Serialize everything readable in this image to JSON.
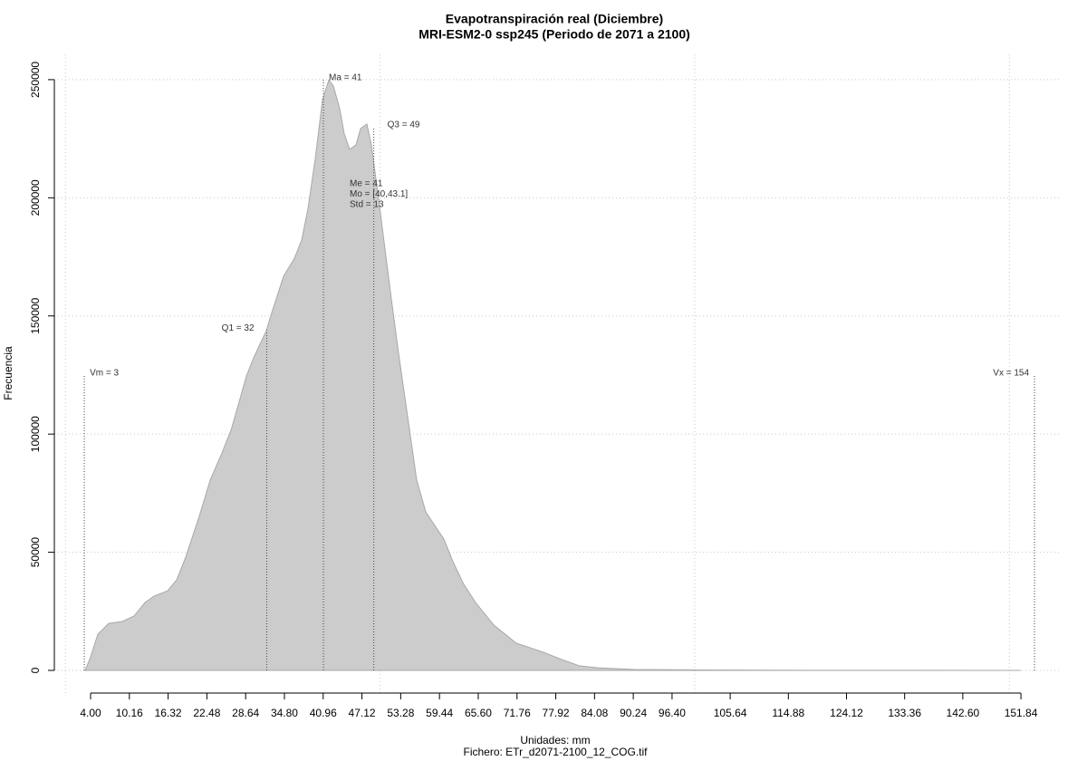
{
  "chart_data": {
    "type": "area",
    "title": "Evapotranspiración real (Diciembre)",
    "subtitle": "MRI-ESM2-0 ssp245 (Periodo de 2071 a 2100)",
    "xlabel": "Unidades: mm",
    "caption": "Fichero: ETr_d2071-2100_12_COG.tif",
    "ylabel": "Frecuencia",
    "color": "#cccccc",
    "grid": true,
    "x": [
      3.14,
      4,
      5.15,
      6.88,
      9.04,
      10.91,
      12.64,
      14.08,
      16.24,
      17.68,
      19.11,
      21.27,
      23.0,
      24.87,
      26.31,
      27.75,
      28.76,
      29.91,
      31.93,
      32.79,
      34.66,
      36.39,
      37.54,
      38.55,
      39.7,
      40.85,
      41.86,
      42.58,
      43.59,
      44.31,
      45.17,
      46.18,
      46.9,
      47.9,
      48.62,
      49.78,
      50.78,
      51.79,
      52.94,
      54.38,
      55.82,
      57.26,
      58.7,
      60.14,
      61.58,
      63.31,
      65.18,
      68.06,
      71.66,
      75.97,
      78.85,
      81.73,
      84.61,
      90.37,
      100.45,
      119.2,
      151.84
    ],
    "values": [
      0,
      5700,
      15300,
      19900,
      20700,
      23000,
      28700,
      31400,
      33700,
      38300,
      47900,
      65200,
      80500,
      92000,
      101600,
      115000,
      124600,
      132300,
      143800,
      151400,
      166800,
      174400,
      182100,
      195500,
      216600,
      241500,
      249900,
      247300,
      237700,
      227000,
      220500,
      222400,
      229300,
      231200,
      222400,
      199400,
      178300,
      157300,
      134200,
      107400,
      80500,
      67100,
      61300,
      55600,
      46000,
      36400,
      28700,
      19200,
      11500,
      7700,
      4600,
      1900,
      1100,
      400,
      200,
      50,
      0
    ],
    "xlim": [
      -1.76,
      158.02
    ],
    "ylim": [
      -9585,
      260700
    ],
    "xticks": [
      {
        "value": 4,
        "label": "4.00"
      },
      10.16,
      16.32,
      22.48,
      28.64,
      {
        "value": 34.8,
        "label": "34.80"
      },
      40.96,
      47.12,
      53.28,
      59.44,
      {
        "value": 65.6,
        "label": "65.60"
      },
      71.76,
      77.92,
      84.08,
      90.24,
      {
        "value": 96.4,
        "label": "96.40"
      },
      105.64,
      114.88,
      124.12,
      133.36,
      {
        "value": 142.6,
        "label": "142.60"
      },
      151.84
    ],
    "yticks": [
      0,
      50000,
      100000,
      150000,
      200000,
      250000
    ],
    "xgrid": [
      0,
      50,
      100,
      150
    ],
    "annotations": [
      {
        "label": "Vm = 3",
        "x": 3,
        "y": 125000
      },
      {
        "label": "Q1 = 32",
        "x": 32,
        "y": 144000
      },
      {
        "label": "Ma = 41",
        "x": 41,
        "y": 250000
      },
      {
        "label": "Q3 = 49",
        "x": 49,
        "y": 230000
      },
      {
        "label": "Vx = 154",
        "x": 154,
        "y": 125000
      }
    ],
    "stats": [
      "Me = 41",
      "Mo = [40,43.1]",
      "Std = 13"
    ]
  }
}
